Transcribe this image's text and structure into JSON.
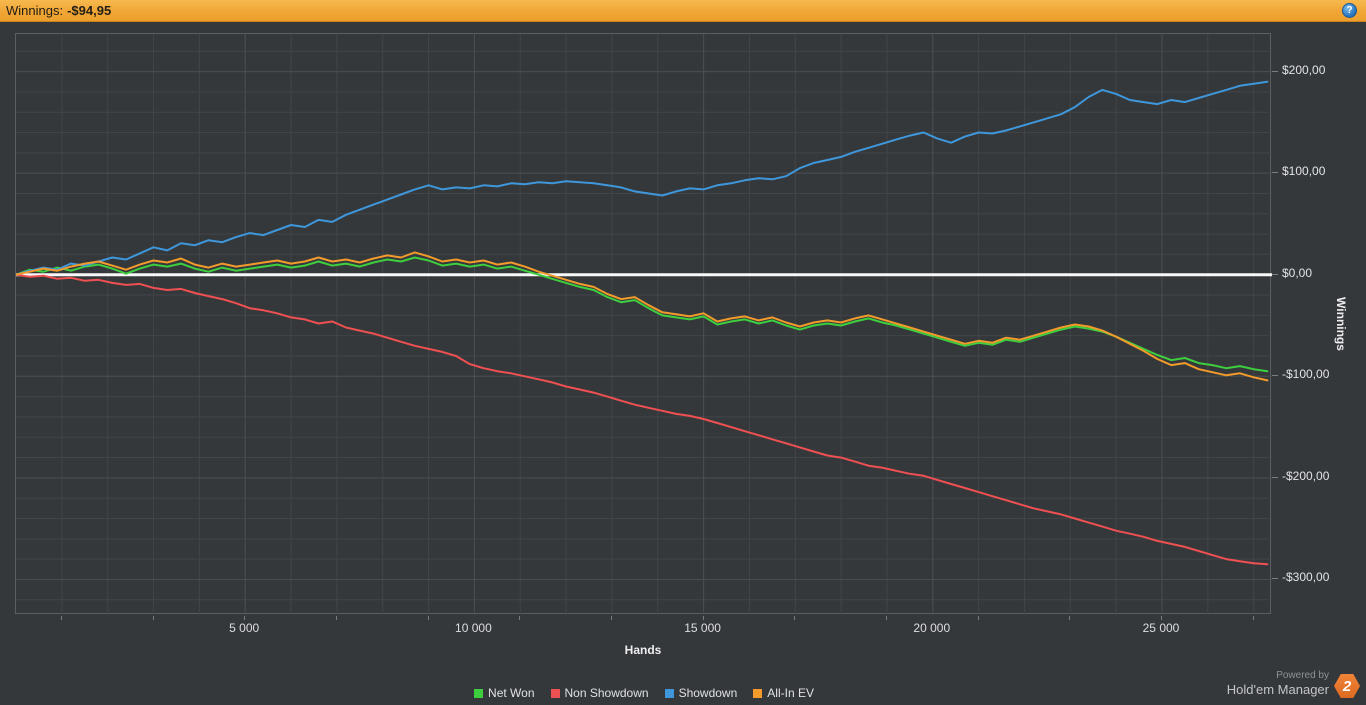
{
  "topbar": {
    "label": "Winnings:",
    "value": "-$94,95",
    "help": "?"
  },
  "footer": {
    "powered_by": "Powered by",
    "brand": "Hold'em Manager",
    "badge": "2"
  },
  "colors": {
    "net_won": "#3ecf3f",
    "non_showdown": "#ef5052",
    "showdown": "#3f97db",
    "all_in_ev": "#f29b2b",
    "zero_line": "#f8f8f8",
    "grid_minor": "#414548",
    "grid_major": "#4a4e52",
    "topbar_orange": "#f0a636",
    "badge_orange": "#e4752c"
  },
  "chart_data": {
    "type": "line",
    "xlabel": "Hands",
    "ylabel": "Winnings",
    "xlim": [
      0,
      27400
    ],
    "ylim": [
      -335,
      237
    ],
    "x_minor_step": 1000,
    "y_minor_step": 20,
    "grid": true,
    "zero_line": 0,
    "legend_position": "bottom",
    "x_ticks": [
      {
        "value": 5000,
        "label": "5 000"
      },
      {
        "value": 10000,
        "label": "10 000"
      },
      {
        "value": 15000,
        "label": "15 000"
      },
      {
        "value": 20000,
        "label": "20 000"
      },
      {
        "value": 25000,
        "label": "25 000"
      }
    ],
    "y_ticks": [
      {
        "value": 200,
        "label": "$200,00"
      },
      {
        "value": 100,
        "label": "$100,00"
      },
      {
        "value": 0,
        "label": "$0,00"
      },
      {
        "value": -100,
        "label": "-$100,00"
      },
      {
        "value": -200,
        "label": "-$200,00"
      },
      {
        "value": -300,
        "label": "-$300,00"
      }
    ],
    "x_start": 0,
    "x_step": 300,
    "series": [
      {
        "name": "Net Won",
        "key": "net_won",
        "color": "#3ecf3f",
        "values": [
          0,
          5,
          3,
          7,
          4,
          8,
          10,
          6,
          1,
          6,
          10,
          8,
          11,
          6,
          3,
          7,
          4,
          6,
          8,
          10,
          7,
          9,
          13,
          9,
          11,
          8,
          12,
          15,
          13,
          17,
          14,
          9,
          11,
          8,
          10,
          6,
          8,
          4,
          0,
          -4,
          -8,
          -12,
          -15,
          -22,
          -27,
          -25,
          -33,
          -40,
          -42,
          -44,
          -41,
          -49,
          -46,
          -44,
          -48,
          -45,
          -50,
          -54,
          -50,
          -48,
          -50,
          -46,
          -43,
          -47,
          -50,
          -54,
          -58,
          -62,
          -66,
          -70,
          -67,
          -69,
          -64,
          -66,
          -62,
          -58,
          -54,
          -51,
          -53,
          -56,
          -61,
          -67,
          -73,
          -79,
          -84,
          -82,
          -87,
          -89,
          -92,
          -90,
          -93,
          -95
        ]
      },
      {
        "name": "Non Showdown",
        "key": "non_showdown",
        "color": "#ef5052",
        "values": [
          0,
          -2,
          -1,
          -4,
          -3,
          -6,
          -5,
          -8,
          -10,
          -9,
          -13,
          -15,
          -14,
          -18,
          -21,
          -24,
          -28,
          -33,
          -35,
          -38,
          -42,
          -44,
          -48,
          -46,
          -52,
          -55,
          -58,
          -62,
          -66,
          -70,
          -73,
          -76,
          -80,
          -88,
          -92,
          -95,
          -97,
          -100,
          -103,
          -106,
          -110,
          -113,
          -116,
          -120,
          -124,
          -128,
          -131,
          -134,
          -137,
          -139,
          -142,
          -146,
          -150,
          -154,
          -158,
          -162,
          -166,
          -170,
          -174,
          -178,
          -180,
          -184,
          -188,
          -190,
          -193,
          -196,
          -198,
          -202,
          -206,
          -210,
          -214,
          -218,
          -222,
          -226,
          -230,
          -233,
          -236,
          -240,
          -244,
          -248,
          -252,
          -255,
          -258,
          -262,
          -265,
          -268,
          -272,
          -276,
          -280,
          -282,
          -284,
          -285
        ]
      },
      {
        "name": "Showdown",
        "key": "showdown",
        "color": "#3f97db",
        "values": [
          0,
          4,
          7,
          5,
          11,
          9,
          13,
          17,
          15,
          21,
          27,
          24,
          31,
          29,
          34,
          32,
          37,
          41,
          39,
          44,
          49,
          47,
          54,
          52,
          59,
          64,
          69,
          74,
          79,
          84,
          88,
          84,
          86,
          85,
          88,
          87,
          90,
          89,
          91,
          90,
          92,
          91,
          90,
          88,
          86,
          82,
          80,
          78,
          82,
          85,
          84,
          88,
          90,
          93,
          95,
          94,
          97,
          105,
          110,
          113,
          116,
          121,
          125,
          129,
          133,
          137,
          140,
          134,
          130,
          136,
          140,
          139,
          142,
          146,
          150,
          154,
          158,
          165,
          175,
          182,
          178,
          172,
          170,
          168,
          172,
          170,
          174,
          178,
          182,
          186,
          188,
          190
        ]
      },
      {
        "name": "All-In EV",
        "key": "all_in_ev",
        "color": "#f29b2b",
        "values": [
          0,
          3,
          6,
          4,
          8,
          11,
          13,
          9,
          5,
          10,
          14,
          12,
          16,
          10,
          7,
          11,
          8,
          10,
          12,
          14,
          11,
          13,
          17,
          13,
          15,
          12,
          16,
          19,
          17,
          22,
          18,
          13,
          15,
          12,
          14,
          10,
          12,
          8,
          3,
          -1,
          -5,
          -9,
          -12,
          -19,
          -24,
          -22,
          -30,
          -37,
          -39,
          -41,
          -38,
          -46,
          -43,
          -41,
          -45,
          -42,
          -47,
          -51,
          -47,
          -45,
          -47,
          -43,
          -40,
          -44,
          -48,
          -52,
          -56,
          -60,
          -64,
          -68,
          -65,
          -67,
          -62,
          -64,
          -60,
          -56,
          -52,
          -49,
          -51,
          -55,
          -61,
          -68,
          -75,
          -83,
          -89,
          -87,
          -93,
          -96,
          -99,
          -97,
          -101,
          -104
        ]
      }
    ]
  }
}
